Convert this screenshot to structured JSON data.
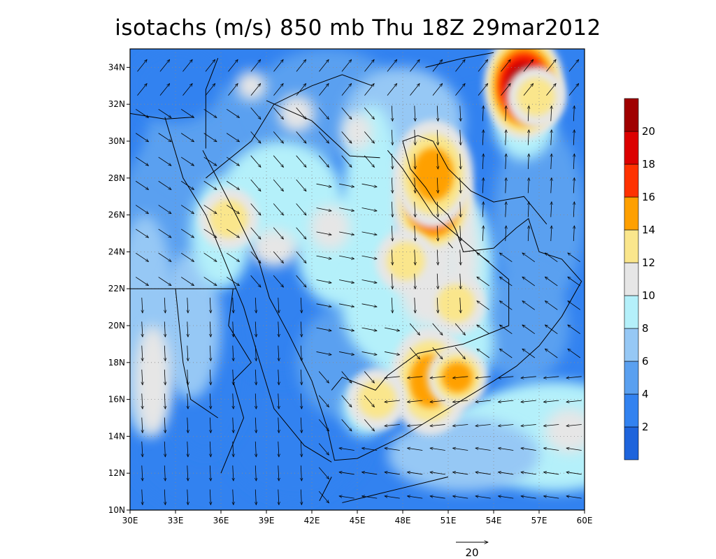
{
  "title": "isotachs (m/s) 850 mb Thu 18Z 29mar2012",
  "chart_data": {
    "type": "heatmap",
    "title": "isotachs (m/s) 850 mb Thu 18Z 29mar2012",
    "variable_units": "m/s",
    "level": "850 mb",
    "valid_time": "Thu 18Z 29mar2012",
    "x_ticks": [
      "30E",
      "33E",
      "36E",
      "39E",
      "42E",
      "45E",
      "48E",
      "51E",
      "54E",
      "57E",
      "60E"
    ],
    "y_ticks": [
      "10N",
      "12N",
      "14N",
      "16N",
      "18N",
      "20N",
      "22N",
      "24N",
      "26N",
      "28N",
      "30N",
      "32N",
      "34N"
    ],
    "xlim": [
      30,
      60
    ],
    "ylim": [
      10,
      35
    ],
    "colorbar": {
      "levels": [
        "2",
        "4",
        "6",
        "8",
        "10",
        "12",
        "14",
        "16",
        "18",
        "20"
      ],
      "colors": [
        "#1e64dc",
        "#3282f0",
        "#5aa0f0",
        "#96c8f5",
        "#b4f0fa",
        "#e6e6e6",
        "#fae68c",
        "#ffa000",
        "#ff3200",
        "#dc0000",
        "#a00000"
      ]
    },
    "reference_vector": {
      "label": "20"
    },
    "wind_maxima": [
      {
        "lon": 56.0,
        "lat": 33.0,
        "speed": 20
      },
      {
        "lon": 50.0,
        "lat": 26.8,
        "speed": 18
      },
      {
        "lon": 50.0,
        "lat": 28.2,
        "speed": 15
      },
      {
        "lon": 49.8,
        "lat": 17.0,
        "speed": 15
      },
      {
        "lon": 51.6,
        "lat": 17.2,
        "speed": 14
      },
      {
        "lon": 48.2,
        "lat": 23.5,
        "speed": 13
      },
      {
        "lon": 51.5,
        "lat": 21.2,
        "speed": 13
      },
      {
        "lon": 36.5,
        "lat": 25.8,
        "speed": 13
      },
      {
        "lon": 46.3,
        "lat": 16.0,
        "speed": 12
      },
      {
        "lon": 56.8,
        "lat": 32.4,
        "speed": 13
      }
    ]
  }
}
